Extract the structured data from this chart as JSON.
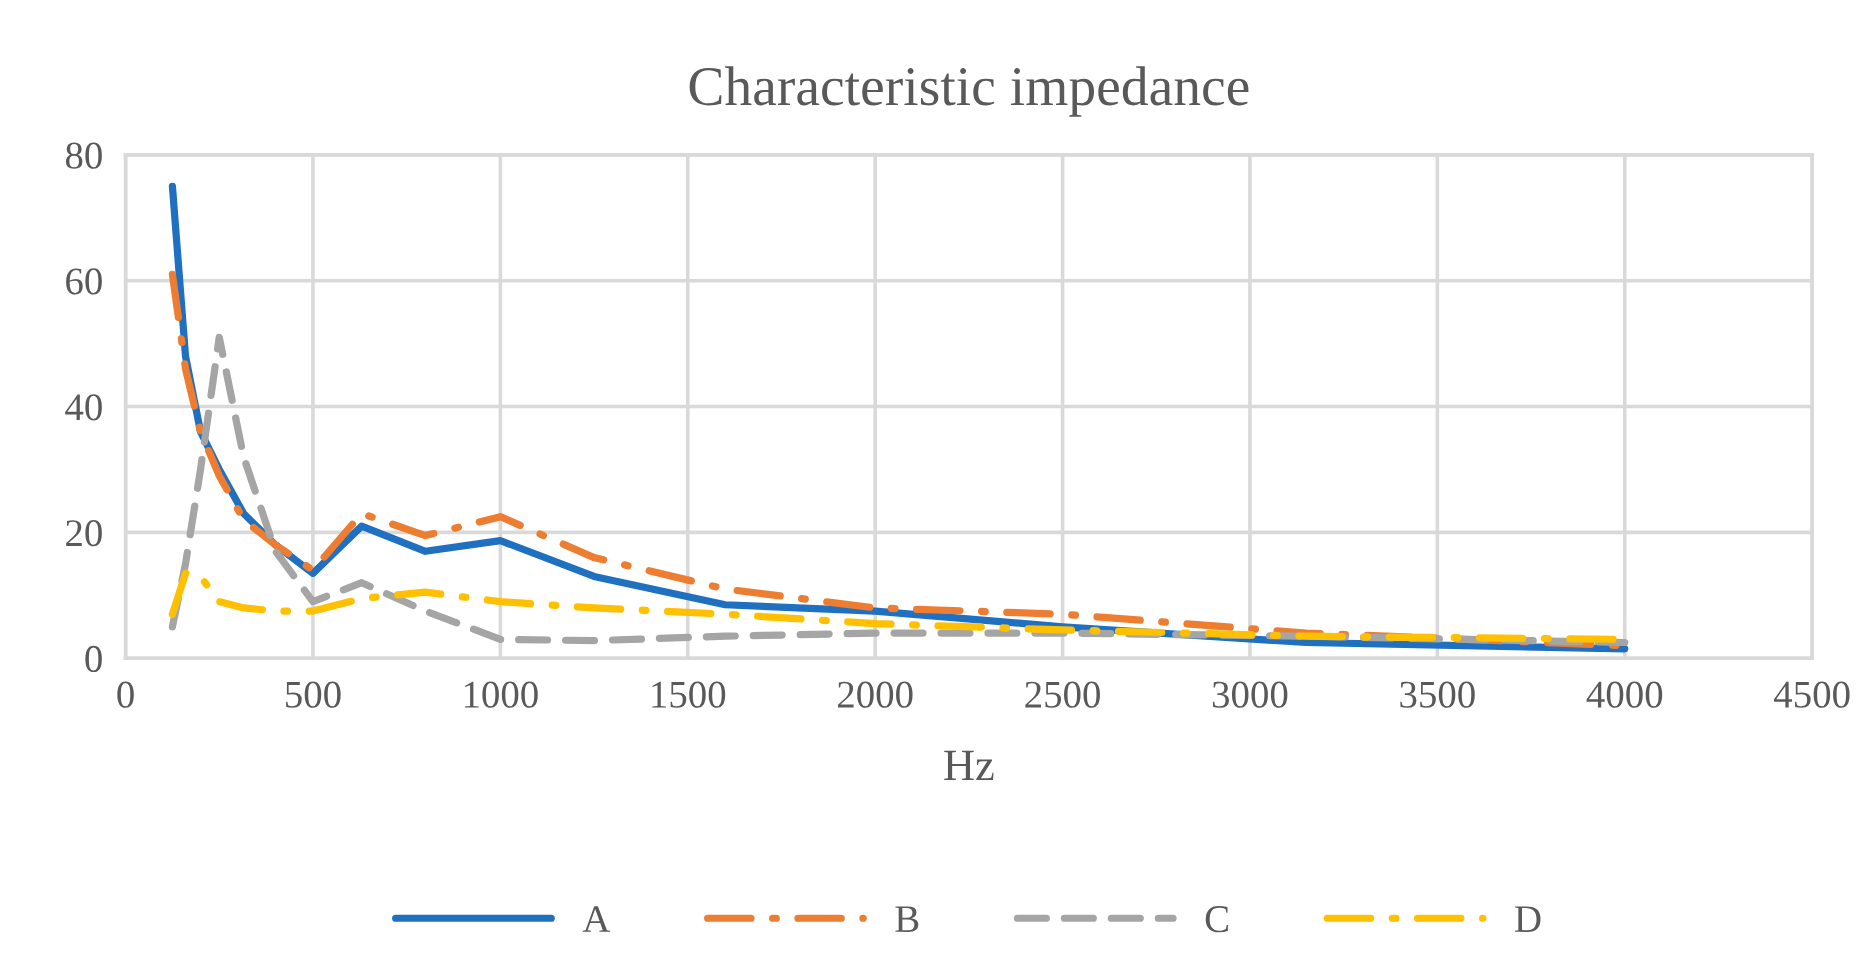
{
  "chart_data": {
    "type": "line",
    "title": "Characteristic impedance",
    "xlabel": "Hz",
    "x": [
      125,
      160,
      200,
      250,
      315,
      400,
      500,
      630,
      800,
      1000,
      1250,
      1600,
      2000,
      2500,
      3150,
      4000
    ],
    "series": [
      {
        "name": "A",
        "color": "#1f70c1",
        "line_style": "solid",
        "values": [
          75,
          48,
          36,
          30,
          23,
          18,
          13.5,
          21,
          17,
          18.7,
          13,
          8.5,
          7.5,
          5,
          2.5,
          1.5
        ]
      },
      {
        "name": "B",
        "color": "#ed7d31",
        "line_style": "dashdot",
        "values": [
          61,
          46,
          36,
          29,
          22,
          18,
          14,
          23,
          19.5,
          22.5,
          16,
          11,
          8,
          7,
          4,
          2
        ]
      },
      {
        "name": "C",
        "color": "#a5a5a5",
        "line_style": "dashed",
        "values": [
          5,
          15,
          30,
          51,
          32,
          17,
          9,
          12,
          7.5,
          3,
          2.8,
          3.5,
          4,
          4,
          3.5,
          2.5
        ]
      },
      {
        "name": "D",
        "color": "#ffc000",
        "line_style": "dashdot",
        "values": [
          7,
          13.5,
          13,
          9,
          8,
          7.5,
          7.5,
          9.5,
          10.5,
          9,
          8,
          7,
          5.5,
          4.5,
          3.5,
          3
        ]
      }
    ],
    "xlim": [
      0,
      4500
    ],
    "xticks": [
      0,
      500,
      1000,
      1500,
      2000,
      2500,
      3000,
      3500,
      4000,
      4500
    ],
    "ylim": [
      0,
      80
    ],
    "yticks": [
      0,
      20,
      40,
      60,
      80
    ],
    "grid": true,
    "legend": "bottom",
    "marker": "none"
  }
}
